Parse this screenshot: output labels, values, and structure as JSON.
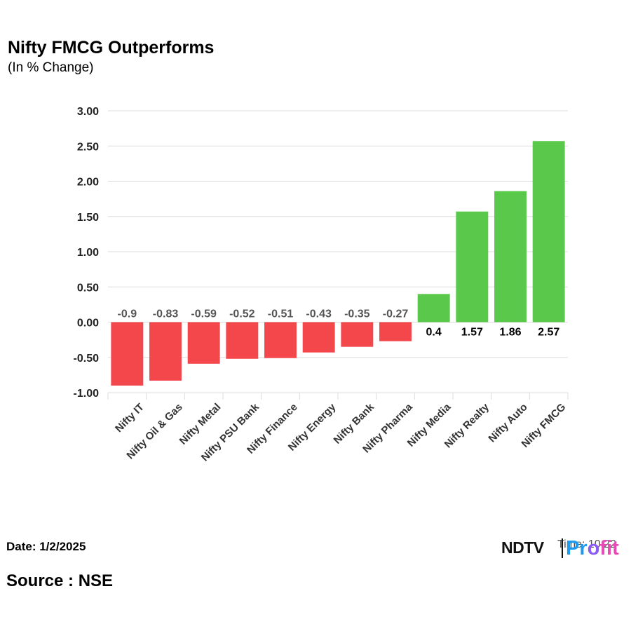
{
  "header": {
    "title": "Nifty FMCG Outperforms",
    "subtitle": "(In % Change)"
  },
  "footer": {
    "date": "Date: 1/2/2025",
    "source": "Source : NSE",
    "time": "Time: 10:22"
  },
  "brand": {
    "ndtv": "NDTV",
    "profit_parts": [
      "Pr",
      "o",
      "fit"
    ]
  },
  "colors": {
    "negative": "#f4474c",
    "positive": "#5ac94b",
    "grid": "#dddddd",
    "label_negative": "#555555",
    "label_positive": "#000000"
  },
  "chart_data": {
    "type": "bar",
    "categories": [
      "Nifty IT",
      "Nifty Oil & Gas",
      "Nifty Metal",
      "Nifty PSU Bank",
      "Nifty Finance",
      "Nifty Energy",
      "Nifty Bank",
      "Nifty Pharma",
      "Nifty Media",
      "Nifty Realty",
      "Nifty Auto",
      "Nifty FMCG"
    ],
    "values": [
      -0.9,
      -0.83,
      -0.59,
      -0.52,
      -0.51,
      -0.43,
      -0.35,
      -0.27,
      0.4,
      1.57,
      1.86,
      2.57
    ],
    "data_labels": [
      "-0.9",
      "-0.83",
      "-0.59",
      "-0.52",
      "-0.51",
      "-0.43",
      "-0.35",
      "-0.27",
      "0.4",
      "1.57",
      "1.86",
      "2.57"
    ],
    "y_ticks": [
      3.0,
      2.5,
      2.0,
      1.5,
      1.0,
      0.5,
      0.0,
      -0.5,
      -1.0
    ],
    "y_tick_labels": [
      "3.00",
      "2.50",
      "2.00",
      "1.50",
      "1.00",
      "0.50",
      "0.00",
      "-0.50",
      "-1.00"
    ],
    "ylim": [
      -1.0,
      3.0
    ],
    "grid": true,
    "legend": false
  }
}
